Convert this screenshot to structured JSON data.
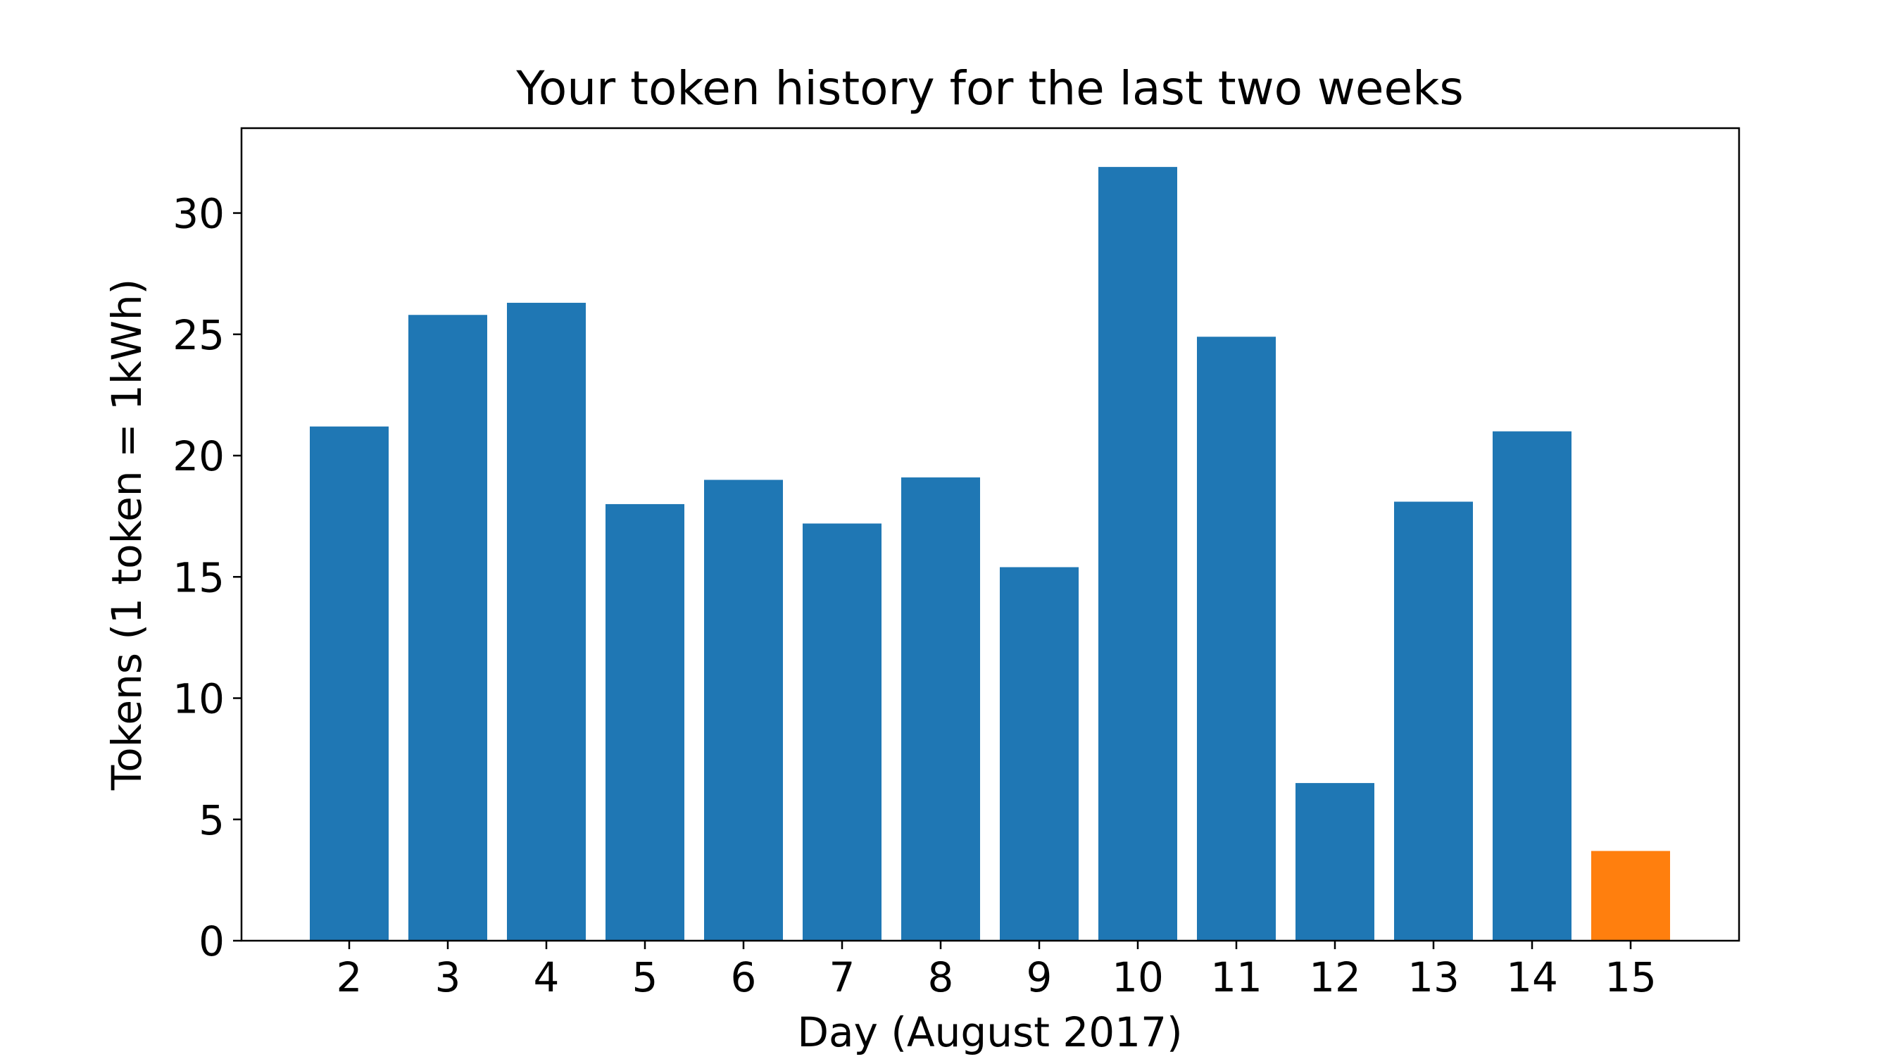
{
  "chart_data": {
    "type": "bar",
    "title": "Your token history for the last two weeks",
    "xlabel": "Day (August 2017)",
    "ylabel": "Tokens (1 token = 1kWh)",
    "categories": [
      "2",
      "3",
      "4",
      "5",
      "6",
      "7",
      "8",
      "9",
      "10",
      "11",
      "12",
      "13",
      "14",
      "15"
    ],
    "values": [
      21.2,
      25.8,
      26.3,
      18.0,
      19.0,
      17.2,
      19.1,
      15.4,
      31.9,
      24.9,
      6.5,
      18.1,
      21.0,
      3.7
    ],
    "bar_colors": [
      "#1f77b4",
      "#1f77b4",
      "#1f77b4",
      "#1f77b4",
      "#1f77b4",
      "#1f77b4",
      "#1f77b4",
      "#1f77b4",
      "#1f77b4",
      "#1f77b4",
      "#1f77b4",
      "#1f77b4",
      "#1f77b4",
      "#ff7f0e"
    ],
    "ylim": [
      0,
      33.5
    ],
    "yticks": [
      0,
      5,
      10,
      15,
      20,
      25,
      30
    ],
    "grid": false,
    "legend": "none"
  }
}
